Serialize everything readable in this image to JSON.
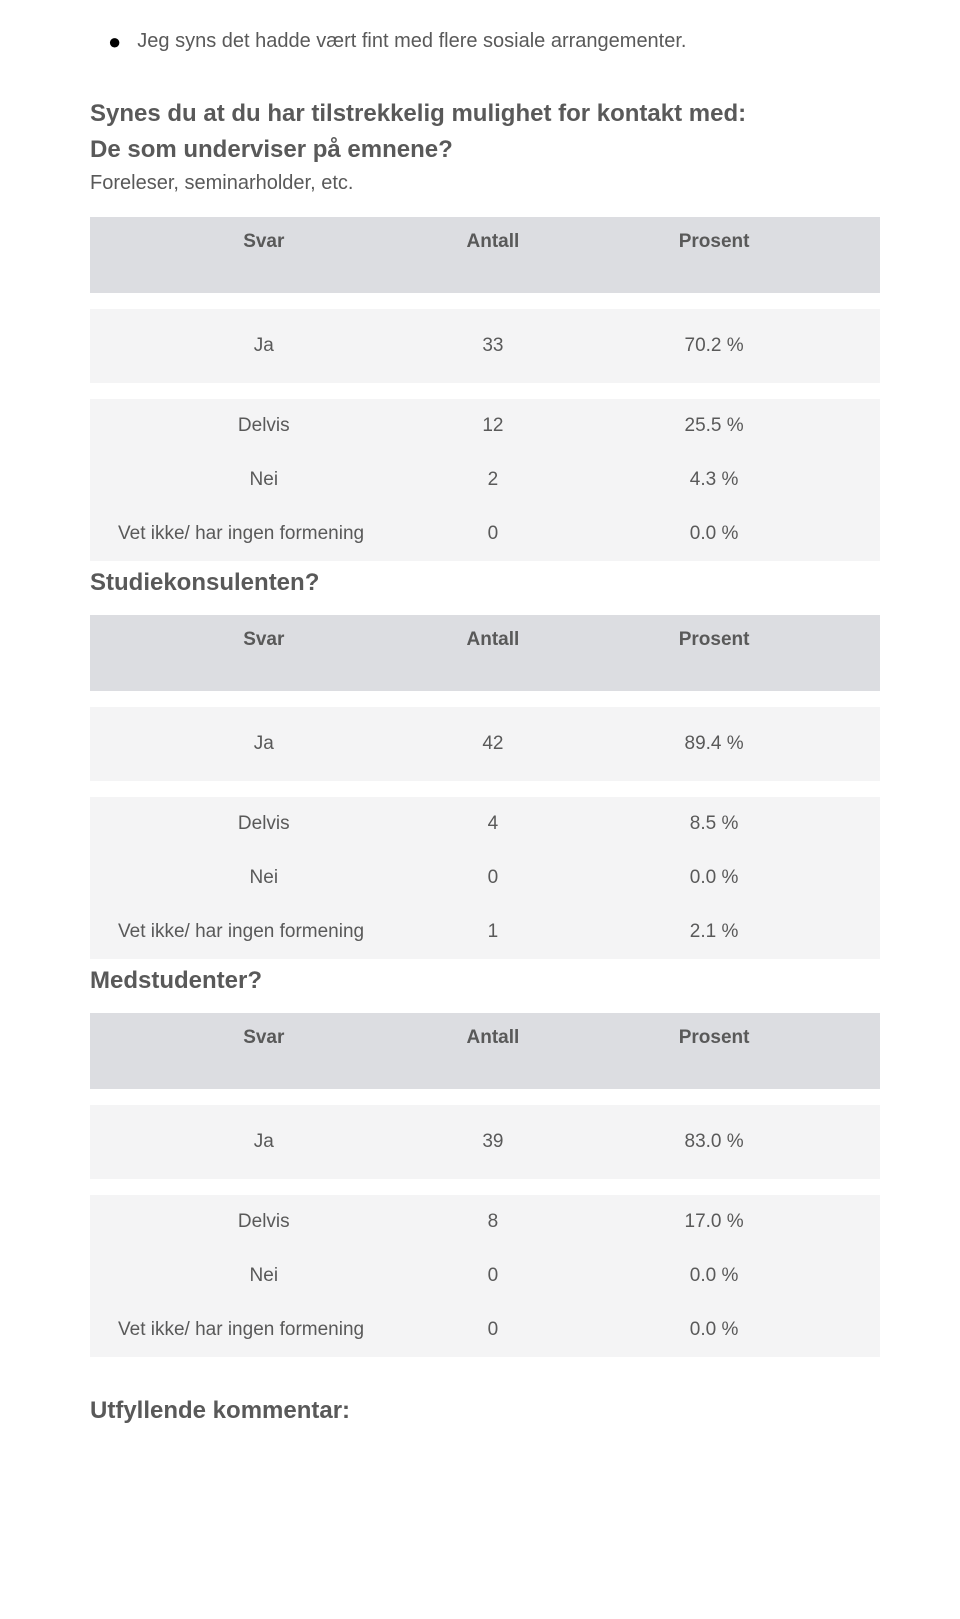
{
  "bullet_text": "Jeg syns det hadde vært fint med flere sosiale arrangementer.",
  "intro": {
    "line1": "Synes du at du har tilstrekkelig mulighet for kontakt med:",
    "line2": "De som underviser på emnene?",
    "sub": "Foreleser, seminarholder, etc."
  },
  "headers": {
    "svar": "Svar",
    "antall": "Antall",
    "prosent": "Prosent"
  },
  "colors": {
    "header_bg": "#dcdde1",
    "row_bg": "#f4f4f5",
    "text": "#595959",
    "page_bg": "#ffffff"
  },
  "sections": [
    {
      "title": null,
      "rows": [
        {
          "label": "Ja",
          "antall": "33",
          "prosent": "70.2 %",
          "tall": true
        },
        {
          "label": "Delvis",
          "antall": "12",
          "prosent": "25.5 %"
        },
        {
          "label": "Nei",
          "antall": "2",
          "prosent": "4.3 %"
        },
        {
          "label": "Vet ikke/ har ingen formening",
          "antall": "0",
          "prosent": "0.0 %",
          "left": true
        }
      ]
    },
    {
      "title": "Studiekonsulenten?",
      "rows": [
        {
          "label": "Ja",
          "antall": "42",
          "prosent": "89.4 %",
          "tall": true
        },
        {
          "label": "Delvis",
          "antall": "4",
          "prosent": "8.5 %"
        },
        {
          "label": "Nei",
          "antall": "0",
          "prosent": "0.0 %"
        },
        {
          "label": "Vet ikke/ har ingen formening",
          "antall": "1",
          "prosent": "2.1 %",
          "left": true
        }
      ]
    },
    {
      "title": "Medstudenter?",
      "rows": [
        {
          "label": "Ja",
          "antall": "39",
          "prosent": "83.0 %",
          "tall": true
        },
        {
          "label": "Delvis",
          "antall": "8",
          "prosent": "17.0 %"
        },
        {
          "label": "Nei",
          "antall": "0",
          "prosent": "0.0 %"
        },
        {
          "label": "Vet ikke/ har ingen formening",
          "antall": "0",
          "prosent": "0.0 %",
          "left": true
        }
      ]
    }
  ],
  "closing_title": "Utfyllende kommentar:"
}
